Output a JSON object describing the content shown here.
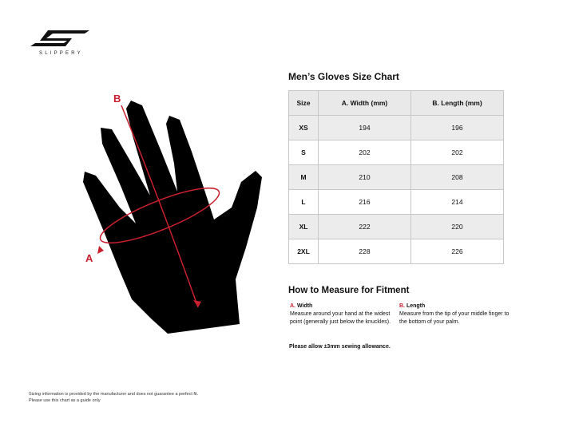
{
  "brand": {
    "name": "SLIPPERY"
  },
  "diagram": {
    "label_a": "A",
    "label_b": "B",
    "accent": "#c8202f"
  },
  "chart": {
    "title": "Men’s Gloves Size Chart",
    "headers": [
      "Size",
      "A. Width (mm)",
      "B. Length (mm)"
    ],
    "rows": [
      [
        "XS",
        "194",
        "196"
      ],
      [
        "S",
        "202",
        "202"
      ],
      [
        "M",
        "210",
        "208"
      ],
      [
        "L",
        "216",
        "214"
      ],
      [
        "XL",
        "222",
        "220"
      ],
      [
        "2XL",
        "228",
        "226"
      ]
    ]
  },
  "measure": {
    "title": "How to Measure for Fitment",
    "a": {
      "key": "A.",
      "label": "Width",
      "text": "Measure around your hand at the widest point (generally just below the knuckles)."
    },
    "b": {
      "key": "B.",
      "label": "Length",
      "text": "Measure from the tip of your middle finger to the bottom of your palm."
    },
    "allowance": "Please allow ±3mm sewing allowance."
  },
  "footer": {
    "line1": "Sizing information is provided by the manufacturer and does not guarantee a perfect fit.",
    "line2": "Please use this chart as a guide only"
  }
}
